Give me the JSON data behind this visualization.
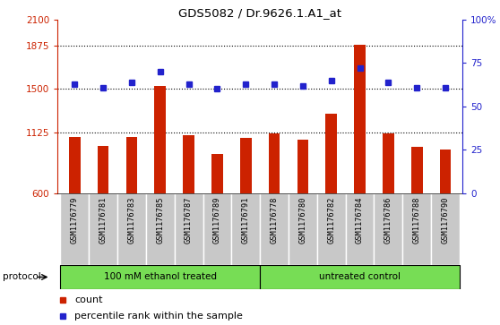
{
  "title": "GDS5082 / Dr.9626.1.A1_at",
  "samples": [
    "GSM1176779",
    "GSM1176781",
    "GSM1176783",
    "GSM1176785",
    "GSM1176787",
    "GSM1176789",
    "GSM1176791",
    "GSM1176778",
    "GSM1176780",
    "GSM1176782",
    "GSM1176784",
    "GSM1176786",
    "GSM1176788",
    "GSM1176790"
  ],
  "counts": [
    1090,
    1010,
    1085,
    1530,
    1100,
    940,
    1080,
    1120,
    1060,
    1290,
    1880,
    1120,
    1000,
    975
  ],
  "percentiles": [
    63,
    61,
    64,
    70,
    63,
    60,
    63,
    63,
    62,
    65,
    72,
    64,
    61,
    61
  ],
  "group1_label": "100 mM ethanol treated",
  "group2_label": "untreated control",
  "group1_count": 7,
  "group2_count": 7,
  "bar_color": "#cc2200",
  "dot_color": "#2222cc",
  "ylim_left": [
    600,
    2100
  ],
  "ylim_right": [
    0,
    100
  ],
  "yticks_left": [
    600,
    1125,
    1500,
    1875,
    2100
  ],
  "ytick_labels_left": [
    "600",
    "1125",
    "1500",
    "1875",
    "2100"
  ],
  "yticks_right": [
    0,
    25,
    50,
    75,
    100
  ],
  "ytick_labels_right": [
    "0",
    "25",
    "50",
    "75",
    "100%"
  ],
  "hlines": [
    1125,
    1500,
    1875
  ],
  "protocol_label": "protocol",
  "group_bg_color": "#77dd55",
  "sample_bg_color": "#c8c8c8",
  "legend_count_label": "count",
  "legend_percentile_label": "percentile rank within the sample"
}
